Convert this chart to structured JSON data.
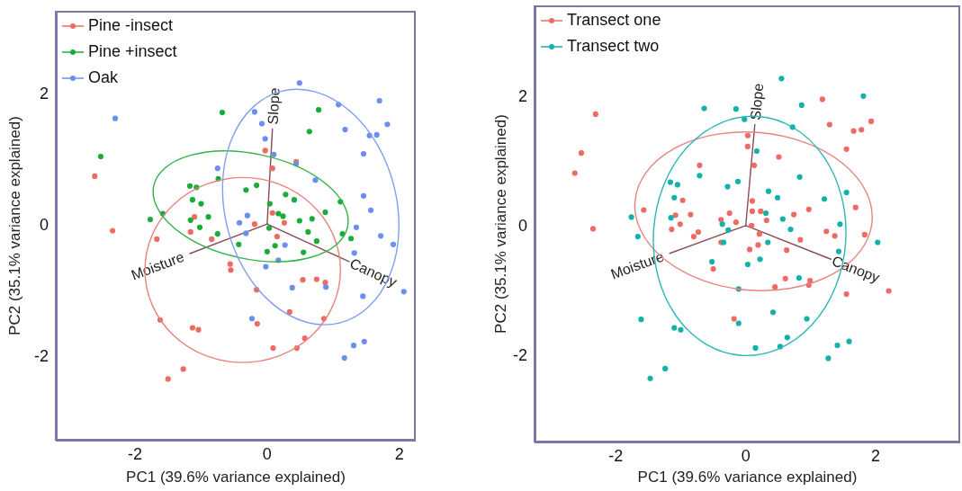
{
  "chart_data": [
    {
      "type": "scatter",
      "xlabel": "PC1 (39.6% variance explained)",
      "ylabel": "PC2 (35.1% variance explained)",
      "xlim": [
        -3.2,
        2.25
      ],
      "ylim": [
        -3.3,
        3.25
      ],
      "xticks": [
        -2,
        0,
        2
      ],
      "yticks": [
        -2,
        0,
        2
      ],
      "legend": "top left",
      "marker": "circle",
      "annotations": [
        {
          "text": "Slope",
          "x": 0.08,
          "y": 1.45
        },
        {
          "text": "Moisture",
          "x": -1.17,
          "y": -0.45
        },
        {
          "text": "Canopy",
          "x": 1.24,
          "y": -0.57
        }
      ],
      "series": [
        {
          "name": "Pine -insect",
          "color": "#ee6b63",
          "x": [
            -2.61,
            -0.03,
            0.44,
            0.08,
            -2.34,
            -1.1,
            -0.19,
            0.08,
            0.26,
            -1.67,
            -1.16,
            -0.84,
            0.15,
            -0.56,
            -0.55,
            0.54,
            0.75,
            0.88,
            -0.16,
            0.34,
            0.86,
            -1.62,
            -1.13,
            -1.04,
            -0.15,
            0.57,
            0.09,
            0.45,
            -1.27,
            -1.5
          ],
          "values": [
            0.73,
            1.12,
            0.95,
            0.85,
            -0.1,
            0.11,
            0.0,
            0.17,
            0.02,
            -0.23,
            -0.12,
            -0.23,
            -0.19,
            -0.61,
            -0.7,
            -0.85,
            -0.84,
            -0.89,
            -1.0,
            -1.34,
            -1.44,
            -1.46,
            -1.58,
            -1.61,
            -1.52,
            -1.74,
            -1.89,
            -1.89,
            -2.21,
            -2.36
          ]
        },
        {
          "name": "Pine +insect",
          "color": "#1aab3a",
          "x": [
            -2.52,
            -0.68,
            0.78,
            0.64,
            -0.74,
            -1.17,
            -1.07,
            -0.32,
            -0.16,
            -1.13,
            -1.0,
            0.28,
            0.41,
            0.04,
            1.11,
            0.88,
            -1.58,
            -0.89,
            -1.77,
            -1.16,
            0.17,
            0.24,
            0.49,
            0.68,
            0.03,
            -1.02,
            -0.75,
            0.62,
            0.75,
            0.12,
            0.0,
            0.55,
            -0.43,
            1.14,
            1.27
          ],
          "values": [
            1.03,
            1.7,
            1.74,
            1.41,
            0.69,
            0.58,
            0.56,
            0.52,
            0.59,
            0.37,
            0.31,
            0.45,
            0.37,
            0.31,
            0.34,
            0.18,
            0.16,
            0.11,
            0.07,
            0.06,
            0.16,
            0.12,
            0.05,
            0.08,
            -0.06,
            -0.05,
            -0.15,
            -0.12,
            -0.26,
            -0.33,
            -0.42,
            -0.43,
            -0.31,
            -0.15,
            -0.22
          ]
        },
        {
          "name": "Oak",
          "color": "#6b8ff0",
          "x": [
            -2.3,
            0.49,
            -0.19,
            -0.08,
            1.08,
            1.7,
            1.82,
            1.18,
            1.55,
            1.66,
            -0.03,
            0.1,
            0.44,
            1.46,
            -0.75,
            0.73,
            1.46,
            1.57,
            -0.3,
            -0.42,
            1.35,
            -0.32,
            1.72,
            1.91,
            0.27,
            1.32,
            0.17,
            -0.02,
            0.38,
            0.89,
            1.45,
            2.07,
            -0.23,
            1.31,
            1.47,
            1.17
          ],
          "values": [
            1.61,
            2.15,
            1.71,
            1.53,
            1.82,
            1.88,
            1.52,
            1.44,
            1.35,
            1.36,
            1.3,
            1.06,
            0.92,
            1.07,
            0.85,
            0.67,
            0.43,
            0.21,
            0.13,
            0.02,
            -0.05,
            -0.14,
            -0.18,
            -0.31,
            -0.32,
            -0.44,
            -0.55,
            -0.65,
            -0.97,
            -0.96,
            -1.1,
            -1.03,
            -1.44,
            -1.85,
            -1.79,
            -2.04
          ]
        },
        {
          "type": "line",
          "marker": "none",
          "color": "#8b4a55",
          "x": [
            0,
            0.08
          ],
          "values": [
            0,
            1.45
          ]
        },
        {
          "type": "line",
          "marker": "none",
          "color": "#8b4a55",
          "x": [
            0,
            -1.17
          ],
          "values": [
            0,
            -0.45
          ]
        },
        {
          "type": "line",
          "marker": "none",
          "color": "#8b4a55",
          "x": [
            0,
            1.24
          ],
          "values": [
            0,
            -0.57
          ]
        }
      ]
    },
    {
      "type": "scatter",
      "xlabel": "PC1 (39.6% variance explained)",
      "ylabel": "PC2 (35.1% variance explained)",
      "xlim": [
        -3.25,
        3.3
      ],
      "ylim": [
        -3.35,
        3.4
      ],
      "xticks": [
        -2,
        0,
        2
      ],
      "yticks": [
        -2,
        0,
        2
      ],
      "legend": "top left",
      "marker": "circle",
      "annotations": [
        {
          "text": "Slope",
          "x": 0.14,
          "y": 1.56
        },
        {
          "text": "Moisture",
          "x": -1.17,
          "y": -0.43
        },
        {
          "text": "Canopy",
          "x": 1.31,
          "y": -0.52
        }
      ],
      "series": [
        {
          "name": "Transect one",
          "color": "#ee6b63",
          "x": [
            -2.31,
            -2.53,
            -2.63,
            1.18,
            1.93,
            1.29,
            1.66,
            1.78,
            1.55,
            0.03,
            0.03,
            0.51,
            -0.71,
            0.13,
            -0.97,
            -1.57,
            -1.08,
            -0.85,
            0.1,
            0.1,
            0.23,
            -0.25,
            -0.15,
            -0.38,
            0.32,
            0.74,
            0.97,
            1.69,
            -2.35,
            -1.01,
            -1.14,
            -0.8,
            -0.73,
            -0.38,
            0.09,
            0.21,
            0.19,
            0.06,
            0.63,
            0.84,
            1.24,
            1.37,
            1.83,
            -0.5,
            0.61,
            0.99,
            0.97,
            0.45,
            1.55,
            2.2,
            -0.18
          ],
          "values": [
            1.72,
            1.12,
            0.81,
            1.95,
            1.61,
            1.56,
            1.46,
            1.48,
            1.18,
            1.39,
            1.22,
            1.06,
            0.93,
            0.93,
            0.39,
            0.24,
            0.16,
            0.17,
            0.38,
            0.22,
            0.22,
            0.19,
            0.05,
            0.09,
            0.08,
            0.17,
            0.25,
            0.28,
            -0.05,
            0.02,
            -0.06,
            -0.17,
            -0.1,
            -0.26,
            0.0,
            -0.13,
            -0.3,
            -0.37,
            -0.38,
            -0.22,
            -0.09,
            -0.16,
            -0.14,
            -0.67,
            -0.82,
            -0.85,
            -0.92,
            -0.95,
            -1.06,
            -1.01,
            -1.44
          ]
        },
        {
          "name": "Transect two",
          "color": "#14b0ac",
          "x": [
            0.55,
            1.81,
            -0.64,
            -0.15,
            0.86,
            -0.02,
            0.72,
            0.17,
            -0.71,
            0.83,
            -1.16,
            -1.05,
            -0.12,
            -0.28,
            -1.1,
            0.35,
            0.49,
            1.21,
            1.55,
            -1.76,
            -1.15,
            0.31,
            0.57,
            -0.36,
            1.45,
            0.69,
            -1.66,
            -0.27,
            -0.34,
            0.34,
            1.43,
            2.03,
            -0.52,
            0.03,
            0.22,
            0.82,
            -0.11,
            0.42,
            0.94,
            -0.11,
            -1.61,
            -1.1,
            -1.0,
            0.64,
            0.15,
            0.53,
            1.41,
            1.59,
            1.27,
            -1.24,
            -1.47
          ],
          "values": [
            2.27,
            2.0,
            1.81,
            1.8,
            1.86,
            1.64,
            1.52,
            1.15,
            0.77,
            0.75,
            0.67,
            0.63,
            0.68,
            0.6,
            0.43,
            0.53,
            0.43,
            0.41,
            0.51,
            0.13,
            0.12,
            0.19,
            0.1,
            0.02,
            0.02,
            -0.06,
            -0.17,
            -0.07,
            -0.26,
            -0.26,
            -0.4,
            -0.26,
            -0.56,
            -0.6,
            -0.52,
            -0.81,
            -0.98,
            -1.34,
            -1.44,
            -1.51,
            -1.45,
            -1.58,
            -1.61,
            -1.73,
            -1.89,
            -1.87,
            -1.85,
            -1.79,
            -2.05,
            -2.21,
            -2.36
          ]
        },
        {
          "type": "line",
          "marker": "none",
          "color": "#8b4a55",
          "x": [
            0,
            0.14
          ],
          "values": [
            0,
            1.56
          ]
        },
        {
          "type": "line",
          "marker": "none",
          "color": "#8b4a55",
          "x": [
            0,
            -1.17
          ],
          "values": [
            0,
            -0.43
          ]
        },
        {
          "type": "line",
          "marker": "none",
          "color": "#8b4a55",
          "x": [
            0,
            1.31
          ],
          "values": [
            0,
            -0.52
          ]
        }
      ]
    }
  ]
}
